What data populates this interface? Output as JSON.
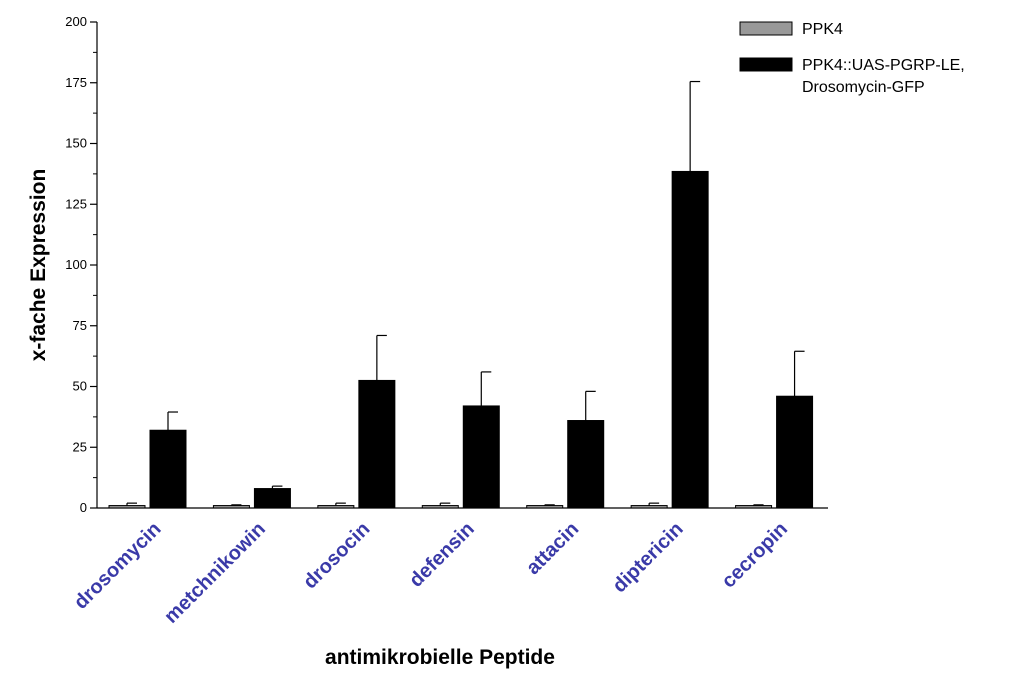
{
  "chart_data": {
    "type": "bar",
    "xlabel": "antimikrobielle Peptide",
    "ylabel": "x-fache Expression",
    "ylim": [
      0,
      200
    ],
    "yticks": [
      0,
      25,
      50,
      75,
      100,
      125,
      150,
      175,
      200
    ],
    "categories": [
      "drosomycin",
      "metchnikowin",
      "drosocin",
      "defensin",
      "attacin",
      "diptericin",
      "cecropin"
    ],
    "series": [
      {
        "name": "PPK4",
        "color": "#999999",
        "values": [
          1,
          1,
          1,
          1,
          1,
          1,
          1
        ],
        "errors": [
          1,
          0.3,
          1,
          1,
          0.3,
          1,
          0.3
        ]
      },
      {
        "name": "PPK4::UAS-PGRP-LE, Drosomycin-GFP",
        "color": "#000000",
        "values": [
          32,
          8,
          52.5,
          42,
          36,
          138.5,
          46
        ],
        "errors": [
          7.5,
          1,
          18.5,
          14,
          12,
          37,
          18.5
        ]
      }
    ],
    "legend": {
      "position": "top-right",
      "entries": [
        "PPK4",
        "PPK4::UAS-PGRP-LE,",
        "Drosomycin-GFP"
      ]
    },
    "grid": false
  }
}
